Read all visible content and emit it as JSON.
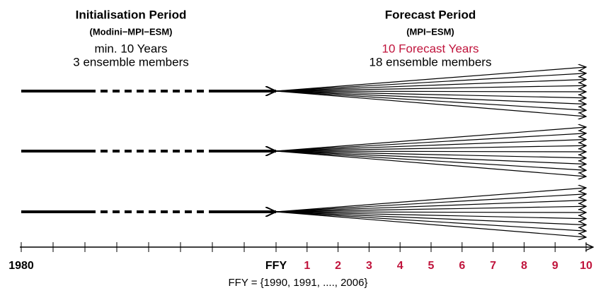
{
  "initialisation": {
    "title": "Initialisation Period",
    "model": "(Modini−MPI−ESM)",
    "duration": "min. 10 Years",
    "members": "3 ensemble members"
  },
  "forecast": {
    "title": "Forecast Period",
    "model": "(MPI−ESM)",
    "duration": "10 Forecast Years",
    "members": "18 ensemble members"
  },
  "axis": {
    "start_label": "1980",
    "ffy_label": "FFY",
    "year_labels": [
      "1",
      "2",
      "3",
      "4",
      "5",
      "6",
      "7",
      "8",
      "9",
      "10"
    ]
  },
  "footnote": "FFY = {1990, 1991, ...., 2006}"
}
